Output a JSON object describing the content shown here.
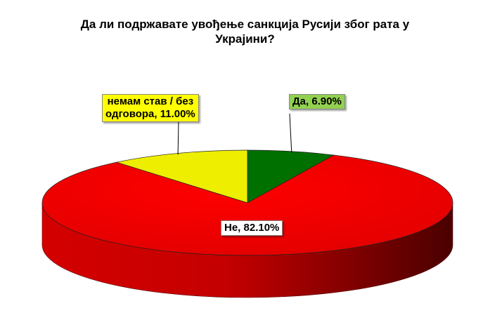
{
  "chart_data": {
    "type": "pie",
    "title_lines": [
      "Да ли подржавате увођење санкција Русији због рата у",
      "Украјини?"
    ],
    "slices": [
      {
        "label": "Да",
        "value": 6.9,
        "display": "Да, 6.90%",
        "color": "#007000"
      },
      {
        "label": "Не",
        "value": 82.1,
        "display": "Не, 82.10%",
        "color": "#ee0000"
      },
      {
        "label": "немам став / без одговора",
        "value": 11.0,
        "display_lines": [
          "немам став / без",
          "одговора, 11.00%"
        ],
        "color": "#eeee00"
      }
    ],
    "style": "3d",
    "legend": "none"
  }
}
